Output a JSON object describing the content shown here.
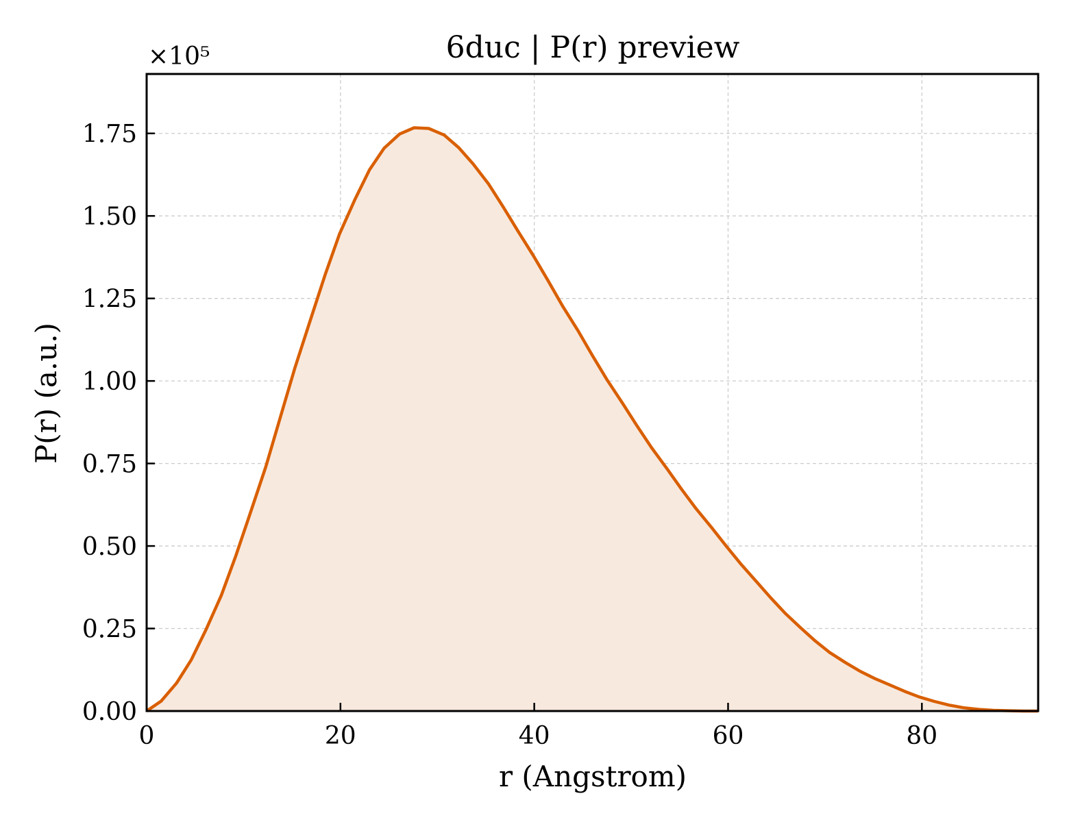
{
  "chart_data": {
    "type": "area",
    "title": "6duc | P(r) preview",
    "xlabel": "r (Angstrom)",
    "ylabel": "P(r) (a.u.)",
    "y_multiplier_label": "×10⁵",
    "y_scale_factor": 100000,
    "xlim": [
      0,
      92
    ],
    "ylim": [
      0,
      1.93
    ],
    "xticks": [
      "0",
      "20",
      "40",
      "60",
      "80"
    ],
    "yticks": [
      "0.00",
      "0.25",
      "0.50",
      "0.75",
      "1.00",
      "1.25",
      "1.50",
      "1.75"
    ],
    "grid": true,
    "series": [
      {
        "color": "#d95f02",
        "fill_color": "#f8e9de",
        "x": [
          0,
          1.5,
          3.1,
          4.6,
          6.1,
          7.7,
          9.2,
          10.7,
          12.3,
          13.8,
          15.3,
          16.9,
          18.4,
          19.9,
          21.5,
          23.0,
          24.5,
          26.1,
          27.6,
          29.1,
          30.7,
          32.2,
          33.7,
          35.3,
          36.8,
          38.3,
          39.9,
          41.4,
          42.9,
          44.5,
          46.0,
          47.5,
          49.1,
          50.6,
          52.1,
          53.7,
          55.2,
          56.7,
          58.3,
          59.8,
          61.3,
          62.9,
          64.4,
          65.9,
          67.5,
          69.0,
          70.5,
          72.1,
          73.6,
          75.1,
          76.7,
          78.2,
          79.7,
          81.3,
          82.8,
          84.3,
          85.9,
          87.4,
          88.9,
          90.5,
          92.0
        ],
        "y": [
          0.0,
          0.03,
          0.085,
          0.155,
          0.245,
          0.35,
          0.47,
          0.6,
          0.74,
          0.89,
          1.04,
          1.185,
          1.32,
          1.445,
          1.55,
          1.64,
          1.705,
          1.748,
          1.767,
          1.765,
          1.745,
          1.707,
          1.657,
          1.596,
          1.527,
          1.455,
          1.38,
          1.305,
          1.228,
          1.153,
          1.077,
          1.004,
          0.933,
          0.864,
          0.798,
          0.734,
          0.672,
          0.613,
          0.556,
          0.5,
          0.446,
          0.393,
          0.343,
          0.296,
          0.252,
          0.212,
          0.177,
          0.147,
          0.121,
          0.099,
          0.079,
          0.06,
          0.043,
          0.029,
          0.018,
          0.01,
          0.005,
          0.002,
          0.001,
          0.0,
          0.0
        ]
      }
    ]
  }
}
